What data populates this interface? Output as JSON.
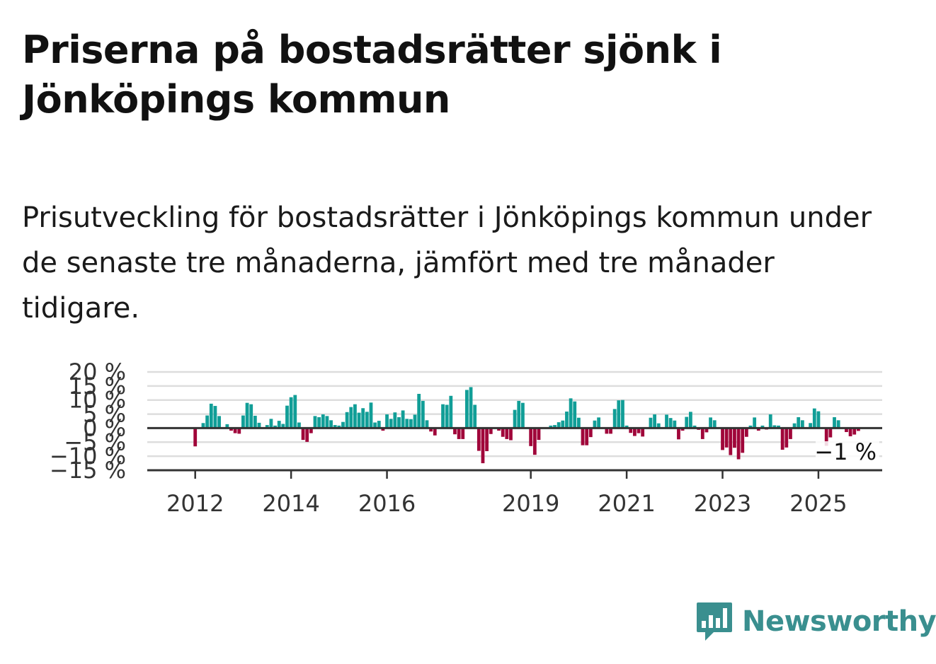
{
  "title": "Priserna på bostadsrätter sjönk i Jönköpings kommun",
  "subtitle": "Prisutveckling för bostadsrätter i Jönköpings kommun under de senaste tre månaderna, jämfört med tre månader tidigare.",
  "brand": {
    "name": "Newsworthy",
    "color": "#3a8f8f",
    "icon": "bar-chart-speech-bubble-icon"
  },
  "colors": {
    "positive": "#119e97",
    "negative": "#a0063a",
    "zero_line": "#333333",
    "grid": "#dddddd"
  },
  "chart_data": {
    "type": "bar",
    "title": "",
    "xlabel": "",
    "ylabel": "",
    "ylim": [
      -15,
      20
    ],
    "yticks": [
      20,
      15,
      10,
      5,
      0,
      -5,
      -10,
      -15
    ],
    "ytick_labels": [
      "20 %",
      "15 %",
      "10 %",
      "5 %",
      "0 %",
      "−5 %",
      "−10 %",
      "−15 %"
    ],
    "xticks": [
      2012,
      2014,
      2016,
      2019,
      2021,
      2023,
      2025
    ],
    "xtick_labels": [
      "2012",
      "2014",
      "2016",
      "2019",
      "2021",
      "2023",
      "2025"
    ],
    "x_start": 2011.0,
    "x_step_years": 0.0833333,
    "grid": true,
    "end_label": "−1 %",
    "values": [
      0,
      0,
      0,
      0,
      0,
      0,
      0,
      0,
      0,
      0,
      0,
      0,
      -6.5,
      0,
      1.8,
      4.5,
      8.7,
      7.9,
      4.3,
      0,
      1.4,
      -0.9,
      -1.8,
      -2.0,
      4.5,
      9.0,
      8.5,
      4.4,
      1.9,
      0,
      1.1,
      3.3,
      0.9,
      2.6,
      1.5,
      8.0,
      11.0,
      11.8,
      2.0,
      -4.2,
      -4.9,
      -1.8,
      4.3,
      3.9,
      4.9,
      4.3,
      2.8,
      1.1,
      0.9,
      2.2,
      5.7,
      7.5,
      8.5,
      5.5,
      7.1,
      5.8,
      9.1,
      2.0,
      2.6,
      -0.9,
      4.9,
      3.3,
      5.6,
      3.9,
      6.3,
      3.3,
      3.2,
      4.8,
      12.2,
      9.7,
      2.8,
      -1.2,
      -2.6,
      0,
      8.5,
      8.3,
      11.5,
      -2.2,
      -3.9,
      -3.9,
      13.6,
      14.6,
      8.3,
      -8.1,
      -12.5,
      -8.2,
      -2.1,
      0,
      -0.9,
      -3.1,
      -3.9,
      -4.3,
      6.5,
      9.7,
      9.0,
      0,
      -6.4,
      -9.5,
      -4.2,
      0,
      0,
      0.9,
      1.1,
      2.1,
      2.7,
      5.9,
      10.6,
      9.5,
      3.7,
      -6.1,
      -6.1,
      -3.2,
      2.7,
      3.8,
      0,
      -2.0,
      -2.0,
      6.8,
      9.9,
      10.0,
      0.9,
      -1.7,
      -2.8,
      -1.8,
      -3.0,
      0,
      3.7,
      4.9,
      1.7,
      0,
      4.8,
      3.6,
      2.7,
      -4.0,
      -0.9,
      4.0,
      5.8,
      0.9,
      -0.6,
      -3.9,
      -1.5,
      3.8,
      2.8,
      0,
      -7.8,
      -6.9,
      -9.6,
      -7.0,
      -11.1,
      -8.8,
      -3.1,
      0.9,
      3.8,
      -0.9,
      0.9,
      -0.5,
      4.9,
      1.0,
      0.9,
      -7.7,
      -6.9,
      -3.9,
      1.7,
      3.9,
      2.8,
      0,
      1.8,
      7.0,
      6.0,
      0,
      -6.3,
      -3.3,
      3.9,
      2.8,
      0,
      -1.4,
      -2.9,
      -2.3,
      -1.0
    ]
  }
}
